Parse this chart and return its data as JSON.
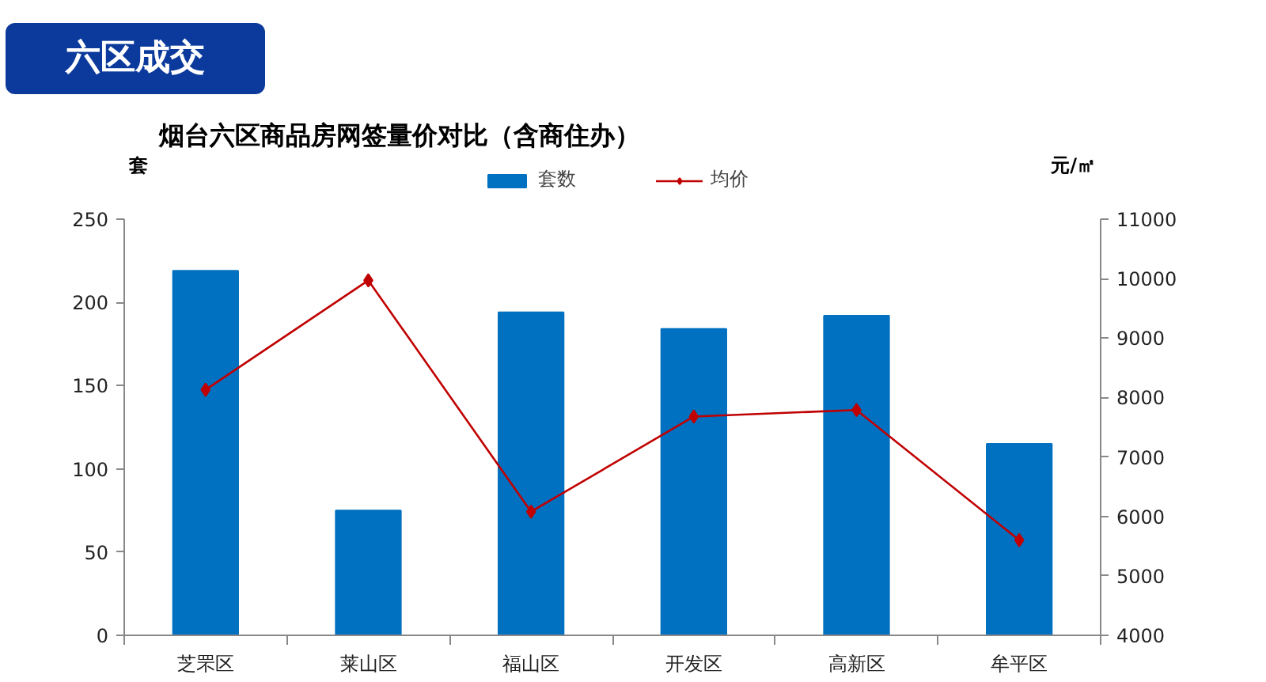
{
  "chart_data": {
    "type": "bar",
    "title": "烟台六区商品房网签量价对比（含商住办）",
    "ylabel": "套",
    "y2label": "元/㎡",
    "annotations": [
      "六区成交"
    ],
    "categories": [
      "芝罘区",
      "莱山区",
      "福山区",
      "开发区",
      "高新区",
      "牟平区"
    ],
    "series": [
      {
        "name": "套数",
        "color": "#0070c0",
        "values": [
          219,
          75,
          194,
          184,
          192,
          115
        ]
      },
      {
        "name": "均价",
        "type": "line",
        "axis": "y2",
        "color": "#c00000",
        "marker": "diamond",
        "values": [
          8130,
          9970,
          6080,
          7680,
          7790,
          5600
        ]
      }
    ],
    "ylim": [
      0,
      250
    ],
    "yticks": [
      0,
      50,
      100,
      150,
      200,
      250
    ],
    "y2lim": [
      4000,
      11000
    ],
    "y2ticks": [
      4000,
      5000,
      6000,
      7000,
      8000,
      9000,
      10000,
      11000
    ],
    "legend": "top",
    "grid": false
  }
}
